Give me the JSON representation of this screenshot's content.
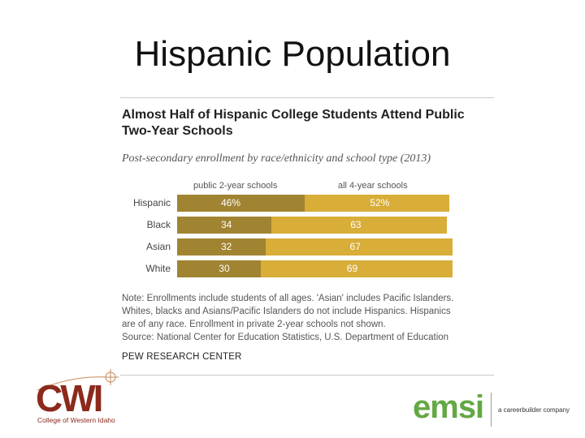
{
  "slide": {
    "title": "Hispanic Population"
  },
  "chart_data": {
    "type": "bar",
    "stacked": true,
    "orientation": "horizontal",
    "title": "Almost Half of Hispanic College Students Attend Public Two-Year Schools",
    "subtitle": "Post-secondary enrollment by race/ethnicity and school type (2013)",
    "categories": [
      "Hispanic",
      "Black",
      "Asian",
      "White"
    ],
    "series": [
      {
        "name": "public 2-year schools",
        "values": [
          46,
          34,
          32,
          30
        ],
        "labels": [
          "46%",
          "34",
          "32",
          "30"
        ],
        "color": "#a08432"
      },
      {
        "name": "all 4-year schools",
        "values": [
          52,
          63,
          67,
          69
        ],
        "labels": [
          "52%",
          "63",
          "67",
          "69"
        ],
        "color": "#d8ad38"
      }
    ],
    "xlim": [
      0,
      100
    ],
    "note_lines": [
      "Note: Enrollments include students of all ages. 'Asian' includes Pacific Islanders.",
      "Whites, blacks and Asians/Pacific Islanders do not include Hispanics. Hispanics",
      "are of any race. Enrollment in private 2-year schools not shown.",
      "Source: National Center for Education Statistics, U.S. Department of Education"
    ],
    "credit": "PEW RESEARCH CENTER"
  },
  "logos": {
    "cwi": {
      "text": "CWI",
      "tagline": "College of Western Idaho",
      "color": "#8b2a1c"
    },
    "emsi": {
      "text": "emsi",
      "tagline": "a careerbuilder company",
      "color": "#64a844"
    }
  }
}
